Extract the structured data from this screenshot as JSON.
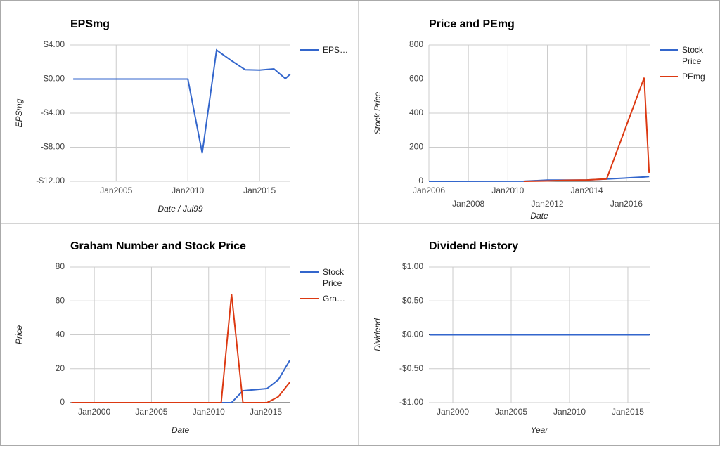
{
  "chart_data": [
    {
      "type": "line",
      "title": "EPSmg",
      "x_label": "Date / Jul99",
      "y_label": "EPSmg",
      "x": [
        2002,
        2003,
        2004,
        2005,
        2006,
        2007,
        2008,
        2009,
        2010,
        2011,
        2012,
        2013,
        2014,
        2015,
        2016,
        2016.8,
        2017.15
      ],
      "series": [
        {
          "name": "EPS…",
          "color": "#3366cc",
          "values": [
            0,
            0,
            0,
            0,
            0,
            0,
            0,
            0,
            0,
            -8.7,
            3.4,
            2.2,
            1.1,
            1.05,
            1.2,
            0.05,
            0.6
          ]
        }
      ],
      "xlim": [
        2001.8,
        2017.15
      ],
      "xticks": [
        {
          "value": 2005,
          "label": "Jan2005"
        },
        {
          "value": 2010,
          "label": "Jan2010"
        },
        {
          "value": 2015,
          "label": "Jan2015"
        }
      ],
      "ylim": [
        -12,
        4
      ],
      "yticks": [
        {
          "value": 4,
          "label": "$4.00"
        },
        {
          "value": 0,
          "label": "$0.00"
        },
        {
          "value": -4,
          "label": "-$4.00"
        },
        {
          "value": -8,
          "label": "-$8.00"
        },
        {
          "value": -12,
          "label": "-$12.00"
        }
      ],
      "grid": true,
      "legend": "right"
    },
    {
      "type": "line",
      "title": "Price and PEmg",
      "x_label": "Date",
      "y_label": "Stock Price",
      "x": [
        2006,
        2010.8,
        2012,
        2013,
        2014,
        2015,
        2016.9,
        2017.15
      ],
      "series": [
        {
          "name": "Stock Price",
          "color": "#3366cc",
          "values": [
            0,
            0.5,
            7,
            7.5,
            8,
            13,
            25,
            28
          ]
        },
        {
          "name": "PEmg",
          "color": "#dc3912",
          "values": [
            null,
            0,
            2,
            6,
            8,
            14,
            608,
            50
          ]
        }
      ],
      "xlim": [
        2006,
        2017.18
      ],
      "xticks": [
        {
          "value": 2006,
          "label": "Jan2006"
        },
        {
          "value": 2008,
          "label": "Jan2008"
        },
        {
          "value": 2010,
          "label": "Jan2010"
        },
        {
          "value": 2012,
          "label": "Jan2012"
        },
        {
          "value": 2014,
          "label": "Jan2014"
        },
        {
          "value": 2016,
          "label": "Jan2016"
        }
      ],
      "ylim": [
        0,
        800
      ],
      "yticks": [
        0,
        200,
        400,
        600,
        800
      ],
      "grid": true,
      "legend": "right"
    },
    {
      "type": "line",
      "title": "Graham Number and Stock Price",
      "x_label": "Date",
      "y_label": "Price",
      "x": [
        1998,
        2011.1,
        2012,
        2013,
        2015.1,
        2016.1,
        2017.1
      ],
      "series": [
        {
          "name": "Stock Price",
          "color": "#3366cc",
          "values": [
            0,
            0,
            0,
            7,
            8.3,
            13.5,
            25
          ]
        },
        {
          "name": "Gra…",
          "color": "#dc3912",
          "values": [
            0,
            0,
            64,
            0,
            0,
            3.5,
            12
          ]
        }
      ],
      "xlim": [
        1997.9,
        2017.15
      ],
      "xticks": [
        {
          "value": 2000,
          "label": "Jan2000"
        },
        {
          "value": 2005,
          "label": "Jan2005"
        },
        {
          "value": 2010,
          "label": "Jan2010"
        },
        {
          "value": 2015,
          "label": "Jan2015"
        }
      ],
      "ylim": [
        0,
        80
      ],
      "yticks": [
        0,
        20,
        40,
        60,
        80
      ],
      "grid": true,
      "legend": "right"
    },
    {
      "type": "line",
      "title": "Dividend History",
      "x_label": "Year",
      "y_label": "Dividend",
      "x": [
        1998,
        2016.85
      ],
      "series": [
        {
          "color": "#3366cc",
          "values": [
            0,
            0
          ]
        }
      ],
      "xlim": [
        1997.95,
        2016.87
      ],
      "xticks": [
        {
          "value": 2000,
          "label": "Jan2000"
        },
        {
          "value": 2005,
          "label": "Jan2005"
        },
        {
          "value": 2010,
          "label": "Jan2010"
        },
        {
          "value": 2015,
          "label": "Jan2015"
        }
      ],
      "ylim": [
        -1,
        1
      ],
      "yticks": [
        {
          "value": 1,
          "label": "$1.00"
        },
        {
          "value": 0.5,
          "label": "$0.50"
        },
        {
          "value": 0,
          "label": "$0.00"
        },
        {
          "value": -0.5,
          "label": "-$0.50"
        },
        {
          "value": -1,
          "label": "-$1.00"
        }
      ],
      "grid": true
    }
  ]
}
